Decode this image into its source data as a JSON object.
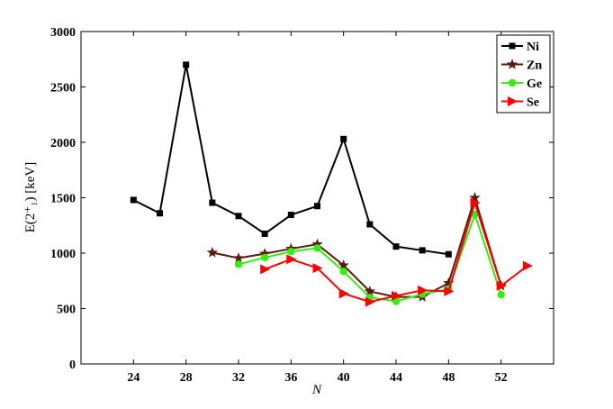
{
  "chart_data": {
    "type": "line",
    "xlabel": "N",
    "ylabel": "E(2⁺₁) [keV]",
    "xlim": [
      20,
      56
    ],
    "ylim": [
      0,
      3000
    ],
    "xticks": [
      24,
      28,
      32,
      36,
      40,
      44,
      48,
      52
    ],
    "yticks": [
      0,
      500,
      1000,
      1500,
      2000,
      2500,
      3000
    ],
    "grid": false,
    "legend_position": "top-right",
    "series": [
      {
        "name": "Ni",
        "color": "#000000",
        "marker": "square",
        "x": [
          24,
          26,
          28,
          30,
          32,
          34,
          36,
          38,
          40,
          42,
          44,
          46,
          48
        ],
        "y": [
          1480,
          1360,
          2700,
          1455,
          1335,
          1175,
          1345,
          1425,
          2030,
          1260,
          1060,
          1025,
          990
        ]
      },
      {
        "name": "Zn",
        "color": "#5a1a10",
        "marker": "star",
        "x": [
          30,
          32,
          34,
          36,
          38,
          40,
          42,
          44,
          46,
          48,
          50,
          52
        ],
        "y": [
          1005,
          955,
          995,
          1040,
          1080,
          890,
          655,
          605,
          605,
          730,
          1500,
          705
        ]
      },
      {
        "name": "Ge",
        "color": "#33ee11",
        "marker": "circle",
        "x": [
          32,
          34,
          36,
          38,
          40,
          42,
          44,
          46,
          48,
          50,
          52
        ],
        "y": [
          900,
          960,
          1015,
          1045,
          835,
          600,
          565,
          630,
          675,
          1350,
          625
        ]
      },
      {
        "name": "Se",
        "color": "#ff0000",
        "marker": "triangle-right",
        "x": [
          34,
          36,
          38,
          40,
          42,
          44,
          46,
          48,
          50,
          52,
          54
        ],
        "y": [
          855,
          945,
          865,
          635,
          560,
          615,
          665,
          655,
          1455,
          705,
          885
        ]
      }
    ]
  }
}
